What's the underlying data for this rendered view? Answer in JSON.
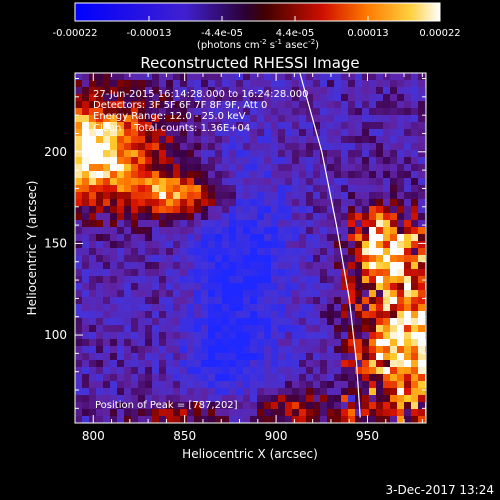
{
  "chart_data": {
    "type": "heatmap",
    "title": "Reconstructed RHESSI Image",
    "xlabel": "Heliocentric X (arcsec)",
    "ylabel": "Heliocentric Y (arcsec)",
    "xlim": [
      790,
      982
    ],
    "ylim": [
      52,
      243
    ],
    "xticks": [
      "800",
      "850",
      "900",
      "950"
    ],
    "yticks": [
      "100",
      "150",
      "200"
    ],
    "colorbar": {
      "min": -0.00022,
      "max": 0.00022,
      "ticks": [
        "-0.00022",
        "-0.00013",
        "-4.4e-05",
        "4.4e-05",
        "0.00013",
        "0.00022"
      ],
      "unit_label": "(photons cm",
      "unit_sup1": "-2",
      "unit_mid1": " s",
      "unit_sup2": "-1",
      "unit_mid2": " asec",
      "unit_sup3": "-2",
      "unit_end": ")"
    },
    "annotations": [
      "27-Jun-2015 16:14:28.000 to 16:24:28.000",
      "Detectors: 3F 5F 6F 7F 8F 9F, Att 0",
      "Energy Range: 12.0 - 25.0 keV",
      "Clean    Total counts: 1.36E+04"
    ],
    "peak_label": "Position of Peak = [787,202]",
    "limb_line": [
      [
        913,
        243
      ],
      [
        925,
        200
      ],
      [
        933,
        160
      ],
      [
        940,
        120
      ],
      [
        944,
        85
      ],
      [
        946,
        55
      ]
    ]
  },
  "footer": {
    "timestamp": "3-Dec-2017 13:24"
  }
}
